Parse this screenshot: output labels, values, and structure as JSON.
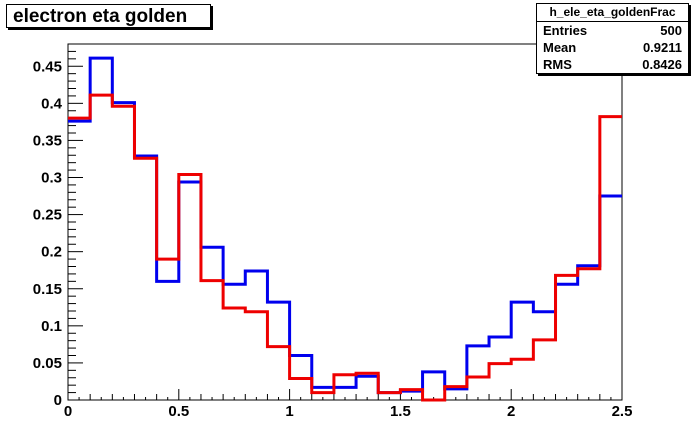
{
  "title": "electron eta golden",
  "stats": {
    "name": "h_ele_eta_goldenFrac",
    "rows": [
      {
        "label": "Entries",
        "value": "500"
      },
      {
        "label": "Mean",
        "value": "0.9211"
      },
      {
        "label": "RMS",
        "value": "0.8426"
      }
    ]
  },
  "chart_data": {
    "type": "histogram",
    "title": "electron eta golden",
    "xlabel": "",
    "ylabel": "",
    "xlim": [
      0,
      2.5
    ],
    "ylim": [
      0,
      0.48
    ],
    "x_ticks": [
      0,
      0.5,
      1,
      1.5,
      2,
      2.5
    ],
    "x_tick_labels": [
      "0",
      "0.5",
      "1",
      "1.5",
      "2",
      "2.5"
    ],
    "y_ticks": [
      0,
      0.05,
      0.1,
      0.15,
      0.2,
      0.25,
      0.3,
      0.35,
      0.4,
      0.45
    ],
    "y_tick_labels": [
      "0",
      "0.05",
      "0.1",
      "0.15",
      "0.2",
      "0.25",
      "0.3",
      "0.35",
      "0.4",
      "0.45"
    ],
    "bin_edges": [
      0,
      0.1,
      0.2,
      0.3,
      0.4,
      0.5,
      0.6,
      0.7,
      0.8,
      0.9,
      1.0,
      1.1,
      1.2,
      1.3,
      1.4,
      1.5,
      1.6,
      1.7,
      1.8,
      1.9,
      2.0,
      2.1,
      2.2,
      2.3,
      2.4,
      2.5
    ],
    "series": [
      {
        "color": "#0000ee",
        "values": [
          0.376,
          0.461,
          0.401,
          0.329,
          0.16,
          0.294,
          0.206,
          0.156,
          0.174,
          0.132,
          0.06,
          0.017,
          0.017,
          0.032,
          0.01,
          0.012,
          0.038,
          0.015,
          0.073,
          0.085,
          0.132,
          0.119,
          0.156,
          0.181,
          0.275
        ]
      },
      {
        "color": "#ee0000",
        "values": [
          0.38,
          0.411,
          0.396,
          0.326,
          0.19,
          0.304,
          0.161,
          0.124,
          0.119,
          0.072,
          0.029,
          0.01,
          0.034,
          0.036,
          0.01,
          0.014,
          0.0,
          0.018,
          0.031,
          0.049,
          0.055,
          0.081,
          0.168,
          0.177,
          0.382
        ]
      }
    ]
  }
}
